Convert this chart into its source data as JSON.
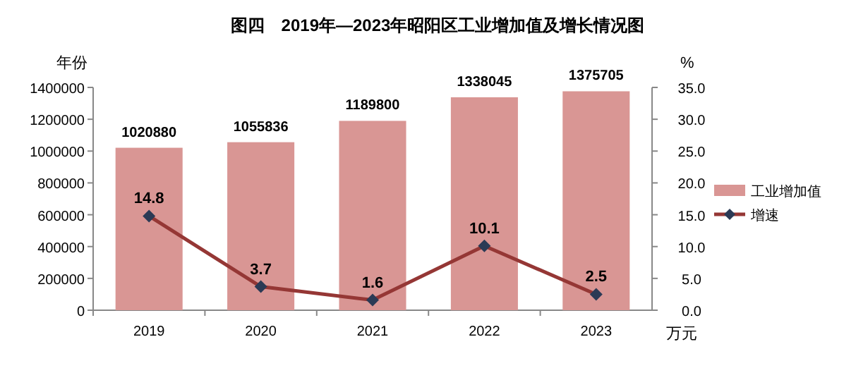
{
  "chart_data": {
    "type": "bar",
    "title": "图四　2019年—2023年昭阳区工业增加值及增长情况图",
    "ylabel": "年份",
    "y2label": "%",
    "xlabel": "万元",
    "categories": [
      "2019",
      "2020",
      "2021",
      "2022",
      "2023"
    ],
    "series": [
      {
        "name": "工业增加值",
        "color": "#d99694",
        "values": [
          1020880,
          1055836,
          1189800,
          1338045,
          1375705
        ]
      },
      {
        "name": "增速",
        "type": "line",
        "axis": "y2",
        "color": "#953735",
        "marker": "diamond",
        "values": [
          14.8,
          3.7,
          1.6,
          10.1,
          2.5
        ]
      }
    ],
    "ylim": [
      0,
      1400000
    ],
    "yticks": [
      0,
      200000,
      400000,
      600000,
      800000,
      1000000,
      1200000,
      1400000
    ],
    "y2lim": [
      0,
      35
    ],
    "y2ticks": [
      {
        "value": 0,
        "label": "0.0"
      },
      {
        "value": 5,
        "label": "5.0"
      },
      {
        "value": 10,
        "label": "10.0"
      },
      {
        "value": 15,
        "label": "15.0"
      },
      {
        "value": 20,
        "label": "20.0"
      },
      {
        "value": 25,
        "label": "25.0"
      },
      {
        "value": 30,
        "label": "30.0"
      },
      {
        "value": 35,
        "label": "35.0"
      }
    ],
    "data_labels": true,
    "legend": "right",
    "grid": false
  }
}
